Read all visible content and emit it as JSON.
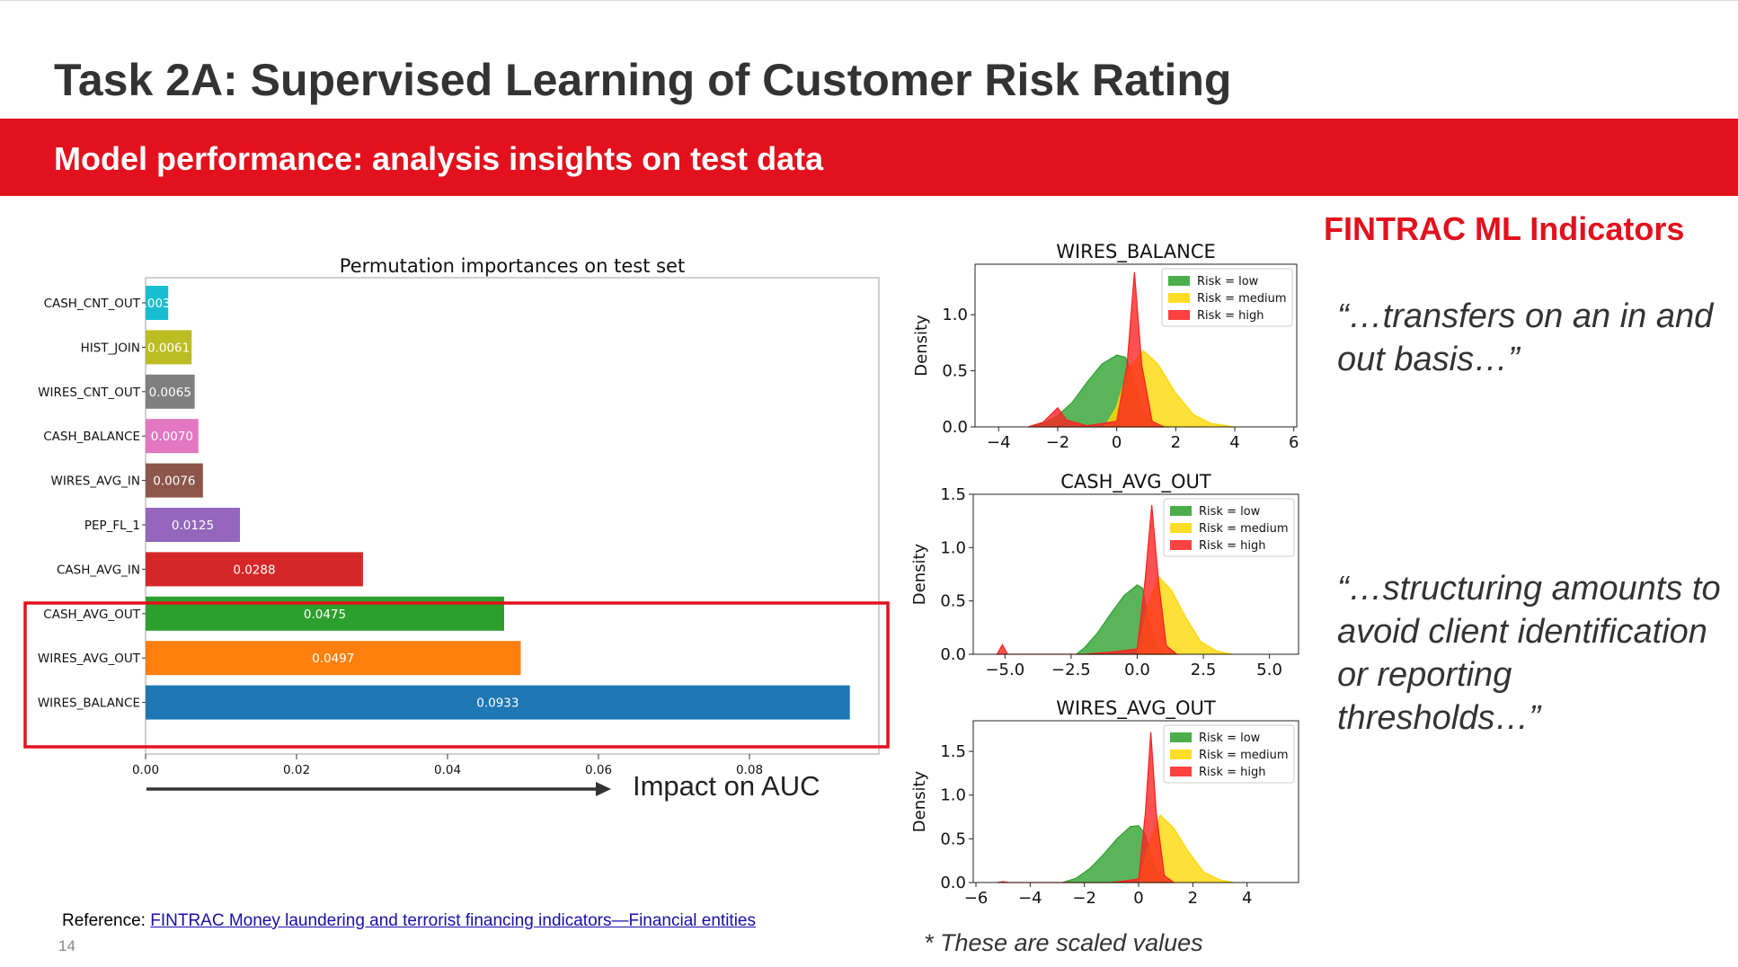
{
  "slide": {
    "title": "Task 2A: Supervised Learning of Customer Risk Rating",
    "banner": "Model performance: analysis insights on test data",
    "side_heading": "FINTRAC ML Indicators",
    "quote1": "“…transfers on an in and out basis…”",
    "quote2": "“…structuring amounts to avoid client identification or reporting thresholds…”",
    "reference_label": "Reference: ",
    "reference_link": "FINTRAC Money laundering and terrorist financing indicators—Financial entities",
    "page_number": "14",
    "scaled_note": "* These are scaled values",
    "impact_label": "Impact on AUC"
  },
  "colors": {
    "brand_red": "#e2111d",
    "risk_low": "#2ca02c",
    "risk_medium": "#ffd700",
    "risk_high": "#ff2020",
    "highlight_box": "#e2111d"
  },
  "chart_data": [
    {
      "type": "bar",
      "orientation": "horizontal",
      "title": "Permutation importances on test set",
      "xlabel": "",
      "xlim": [
        0,
        0.095
      ],
      "xticks": [
        "0.00",
        "0.02",
        "0.04",
        "0.06",
        "0.08"
      ],
      "categories": [
        "CASH_CNT_OUT",
        "HIST_JOIN",
        "WIRES_CNT_OUT",
        "CASH_BALANCE",
        "WIRES_AVG_IN",
        "PEP_FL_1",
        "CASH_AVG_IN",
        "CASH_AVG_OUT",
        "WIRES_AVG_OUT",
        "WIRES_BALANCE"
      ],
      "values": [
        0.003,
        0.0061,
        0.0065,
        0.007,
        0.0076,
        0.0125,
        0.0288,
        0.0475,
        0.0497,
        0.0933
      ],
      "value_labels": [
        ".003",
        "0.0061",
        "0.0065",
        "0.0070",
        "0.0076",
        "0.0125",
        "0.0288",
        "0.0475",
        "0.0497",
        "0.0933"
      ],
      "bar_colors": [
        "#17becf",
        "#bcbd22",
        "#7f7f7f",
        "#e377c2",
        "#8c564b",
        "#9467bd",
        "#d62728",
        "#2ca02c",
        "#ff7f0e",
        "#1f77b4"
      ],
      "highlighted": [
        "CASH_AVG_OUT",
        "WIRES_AVG_OUT",
        "WIRES_BALANCE"
      ]
    },
    {
      "type": "area",
      "title": "WIRES_BALANCE",
      "ylabel": "Density",
      "xlim": [
        -4.8,
        6.1
      ],
      "ylim": [
        0,
        1.45
      ],
      "xticks": [
        -4,
        -2,
        0,
        2,
        4,
        6
      ],
      "yticks": [
        0.0,
        0.5,
        1.0
      ],
      "legend": [
        "Risk = low",
        "Risk = medium",
        "Risk = high"
      ],
      "legend_position": "top-right",
      "series": [
        {
          "name": "Risk = low",
          "color": "#2ca02c",
          "points": [
            [
              -3.0,
              0.0
            ],
            [
              -2.5,
              0.03
            ],
            [
              -2.0,
              0.1
            ],
            [
              -1.5,
              0.22
            ],
            [
              -1.0,
              0.4
            ],
            [
              -0.5,
              0.56
            ],
            [
              0.0,
              0.64
            ],
            [
              0.3,
              0.62
            ],
            [
              0.6,
              0.4
            ],
            [
              0.9,
              0.12
            ],
            [
              1.3,
              0.02
            ],
            [
              1.8,
              0.0
            ]
          ]
        },
        {
          "name": "Risk = medium",
          "color": "#ffd700",
          "points": [
            [
              -0.4,
              0.0
            ],
            [
              0.0,
              0.18
            ],
            [
              0.4,
              0.52
            ],
            [
              0.9,
              0.68
            ],
            [
              1.4,
              0.56
            ],
            [
              2.0,
              0.3
            ],
            [
              2.6,
              0.11
            ],
            [
              3.2,
              0.03
            ],
            [
              4.0,
              0.0
            ]
          ]
        },
        {
          "name": "Risk = high",
          "color": "#ff2020",
          "points": [
            [
              -3.0,
              0.0
            ],
            [
              -2.5,
              0.04
            ],
            [
              -2.0,
              0.17
            ],
            [
              -1.7,
              0.06
            ],
            [
              -1.0,
              0.01
            ],
            [
              0.0,
              0.05
            ],
            [
              0.35,
              0.55
            ],
            [
              0.6,
              1.38
            ],
            [
              0.85,
              0.55
            ],
            [
              1.2,
              0.05
            ],
            [
              1.6,
              0.0
            ]
          ]
        }
      ]
    },
    {
      "type": "area",
      "title": "CASH_AVG_OUT",
      "ylabel": "Density",
      "xlim": [
        -6.2,
        6.1
      ],
      "ylim": [
        0,
        1.5
      ],
      "xticks": [
        -5,
        -2.5,
        0,
        2.5,
        5
      ],
      "xtick_labels": [
        "−5.0",
        "−2.5",
        "0.0",
        "2.5",
        "5.0"
      ],
      "yticks": [
        0.0,
        0.5,
        1.0,
        1.5
      ],
      "legend": [
        "Risk = low",
        "Risk = medium",
        "Risk = high"
      ],
      "legend_position": "top-right",
      "series": [
        {
          "name": "Risk = low",
          "color": "#2ca02c",
          "points": [
            [
              -2.3,
              0.0
            ],
            [
              -2.0,
              0.06
            ],
            [
              -1.5,
              0.2
            ],
            [
              -1.0,
              0.38
            ],
            [
              -0.5,
              0.55
            ],
            [
              0.0,
              0.65
            ],
            [
              0.2,
              0.62
            ],
            [
              0.45,
              0.3
            ],
            [
              0.7,
              0.05
            ],
            [
              1.0,
              0.0
            ]
          ]
        },
        {
          "name": "Risk = medium",
          "color": "#ffd700",
          "points": [
            [
              0.0,
              0.0
            ],
            [
              0.4,
              0.45
            ],
            [
              0.8,
              0.73
            ],
            [
              1.3,
              0.6
            ],
            [
              1.8,
              0.36
            ],
            [
              2.4,
              0.12
            ],
            [
              3.0,
              0.03
            ],
            [
              3.6,
              0.0
            ]
          ]
        },
        {
          "name": "Risk = high",
          "color": "#ff2020",
          "points": [
            [
              -5.3,
              0.0
            ],
            [
              -5.1,
              0.09
            ],
            [
              -4.9,
              0.0
            ],
            [
              -2.0,
              0.0
            ],
            [
              -1.0,
              0.02
            ],
            [
              0.0,
              0.05
            ],
            [
              0.3,
              0.7
            ],
            [
              0.55,
              1.4
            ],
            [
              0.8,
              0.7
            ],
            [
              1.1,
              0.08
            ],
            [
              1.5,
              0.0
            ]
          ]
        }
      ]
    },
    {
      "type": "area",
      "title": "WIRES_AVG_OUT",
      "ylabel": "Density",
      "xlim": [
        -6.1,
        5.9
      ],
      "ylim": [
        0,
        1.85
      ],
      "xticks": [
        -6,
        -4,
        -2,
        0,
        2,
        4
      ],
      "yticks": [
        0.0,
        0.5,
        1.0,
        1.5
      ],
      "legend": [
        "Risk = low",
        "Risk = medium",
        "Risk = high"
      ],
      "legend_position": "top-right",
      "series": [
        {
          "name": "Risk = low",
          "color": "#2ca02c",
          "points": [
            [
              -2.8,
              0.0
            ],
            [
              -2.3,
              0.05
            ],
            [
              -1.8,
              0.16
            ],
            [
              -1.3,
              0.32
            ],
            [
              -0.8,
              0.5
            ],
            [
              -0.3,
              0.64
            ],
            [
              0.0,
              0.65
            ],
            [
              0.25,
              0.55
            ],
            [
              0.5,
              0.25
            ],
            [
              0.8,
              0.05
            ],
            [
              1.1,
              0.0
            ]
          ]
        },
        {
          "name": "Risk = medium",
          "color": "#ffd700",
          "points": [
            [
              0.0,
              0.0
            ],
            [
              0.4,
              0.45
            ],
            [
              0.8,
              0.77
            ],
            [
              1.3,
              0.62
            ],
            [
              1.8,
              0.37
            ],
            [
              2.4,
              0.12
            ],
            [
              3.0,
              0.03
            ],
            [
              3.5,
              0.0
            ]
          ]
        },
        {
          "name": "Risk = high",
          "color": "#ff2020",
          "points": [
            [
              -5.2,
              0.0
            ],
            [
              -5.0,
              0.01
            ],
            [
              -4.8,
              0.0
            ],
            [
              -1.0,
              0.0
            ],
            [
              0.0,
              0.04
            ],
            [
              0.25,
              0.8
            ],
            [
              0.45,
              1.72
            ],
            [
              0.65,
              0.8
            ],
            [
              0.95,
              0.08
            ],
            [
              1.3,
              0.0
            ]
          ]
        }
      ]
    }
  ]
}
